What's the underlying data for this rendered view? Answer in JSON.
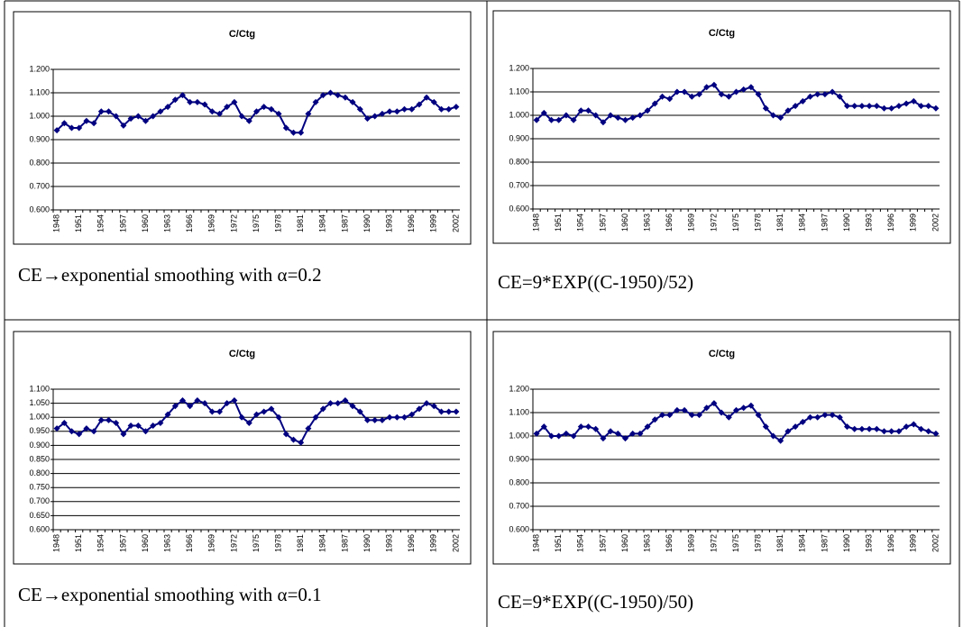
{
  "chart_data": [
    {
      "type": "line",
      "title": "C/Ctg",
      "caption": "CE→exponential smoothing with α=0.2",
      "categories": [
        "1948",
        null,
        null,
        "1951",
        null,
        null,
        "1954",
        null,
        null,
        "1957",
        null,
        null,
        "1960",
        null,
        null,
        "1963",
        null,
        null,
        "1966",
        null,
        null,
        "1969",
        null,
        null,
        "1972",
        null,
        null,
        "1975",
        null,
        null,
        "1978",
        null,
        null,
        "1981",
        null,
        null,
        "1984",
        null,
        null,
        "1987",
        null,
        null,
        "1990",
        null,
        null,
        "1993",
        null,
        null,
        "1996",
        null,
        null,
        "1999",
        null,
        null,
        "2002"
      ],
      "series": [
        {
          "color": "#000080",
          "values": [
            0.94,
            0.97,
            0.95,
            0.95,
            0.98,
            0.97,
            1.02,
            1.02,
            1.0,
            0.96,
            0.99,
            1.0,
            0.98,
            1.0,
            1.02,
            1.04,
            1.07,
            1.09,
            1.06,
            1.06,
            1.05,
            1.02,
            1.01,
            1.04,
            1.06,
            1.0,
            0.98,
            1.02,
            1.04,
            1.03,
            1.01,
            0.95,
            0.93,
            0.93,
            1.01,
            1.06,
            1.09,
            1.1,
            1.09,
            1.08,
            1.06,
            1.03,
            0.99,
            1.0,
            1.01,
            1.02,
            1.02,
            1.03,
            1.03,
            1.05,
            1.08,
            1.06,
            1.03,
            1.03,
            1.04
          ]
        }
      ],
      "ylim": [
        0.6,
        1.2
      ],
      "yticks": [
        {
          "value": 0.6,
          "label": "0.600"
        },
        {
          "value": 0.7,
          "label": "0.700"
        },
        {
          "value": 0.8,
          "label": "0.800"
        },
        {
          "value": 0.9,
          "label": "0.900"
        },
        {
          "value": 1.0,
          "label": "1.000"
        },
        {
          "value": 1.1,
          "label": "1.100"
        },
        {
          "value": 1.2,
          "label": "1.200"
        }
      ],
      "grid": true
    },
    {
      "type": "line",
      "title": "C/Ctg",
      "caption": "CE=9*EXP((C-1950)/52)",
      "categories": [
        "1948",
        null,
        null,
        "1951",
        null,
        null,
        "1954",
        null,
        null,
        "1957",
        null,
        null,
        "1960",
        null,
        null,
        "1963",
        null,
        null,
        "1966",
        null,
        null,
        "1969",
        null,
        null,
        "1972",
        null,
        null,
        "1975",
        null,
        null,
        "1978",
        null,
        null,
        "1981",
        null,
        null,
        "1984",
        null,
        null,
        "1987",
        null,
        null,
        "1990",
        null,
        null,
        "1993",
        null,
        null,
        "1996",
        null,
        null,
        "1999",
        null,
        null,
        "2002"
      ],
      "series": [
        {
          "color": "#000080",
          "values": [
            0.98,
            1.01,
            0.98,
            0.98,
            1.0,
            0.98,
            1.02,
            1.02,
            1.0,
            0.97,
            1.0,
            0.99,
            0.98,
            0.99,
            1.0,
            1.02,
            1.05,
            1.08,
            1.07,
            1.1,
            1.1,
            1.08,
            1.09,
            1.12,
            1.13,
            1.09,
            1.08,
            1.1,
            1.11,
            1.12,
            1.09,
            1.03,
            1.0,
            0.99,
            1.02,
            1.04,
            1.06,
            1.08,
            1.09,
            1.09,
            1.1,
            1.08,
            1.04,
            1.04,
            1.04,
            1.04,
            1.04,
            1.03,
            1.03,
            1.04,
            1.05,
            1.06,
            1.04,
            1.04,
            1.03
          ]
        }
      ],
      "ylim": [
        0.6,
        1.2
      ],
      "yticks": [
        {
          "value": 0.6,
          "label": "0.600"
        },
        {
          "value": 0.7,
          "label": "0.700"
        },
        {
          "value": 0.8,
          "label": "0.800"
        },
        {
          "value": 0.9,
          "label": "0.900"
        },
        {
          "value": 1.0,
          "label": "1.000"
        },
        {
          "value": 1.1,
          "label": "1.100"
        },
        {
          "value": 1.2,
          "label": "1.200"
        }
      ],
      "grid": true
    },
    {
      "type": "line",
      "title": "C/Ctg",
      "caption": "CE→exponential smoothing with α=0.1",
      "categories": [
        "1948",
        null,
        null,
        "1951",
        null,
        null,
        "1954",
        null,
        null,
        "1957",
        null,
        null,
        "1960",
        null,
        null,
        "1963",
        null,
        null,
        "1966",
        null,
        null,
        "1969",
        null,
        null,
        "1972",
        null,
        null,
        "1975",
        null,
        null,
        "1978",
        null,
        null,
        "1981",
        null,
        null,
        "1984",
        null,
        null,
        "1987",
        null,
        null,
        "1990",
        null,
        null,
        "1993",
        null,
        null,
        "1996",
        null,
        null,
        "1999",
        null,
        null,
        "2002"
      ],
      "series": [
        {
          "color": "#000080",
          "values": [
            0.96,
            0.98,
            0.95,
            0.94,
            0.96,
            0.95,
            0.99,
            0.99,
            0.98,
            0.94,
            0.97,
            0.97,
            0.95,
            0.97,
            0.98,
            1.01,
            1.04,
            1.06,
            1.04,
            1.06,
            1.05,
            1.02,
            1.02,
            1.05,
            1.06,
            1.0,
            0.98,
            1.01,
            1.02,
            1.03,
            1.0,
            0.94,
            0.92,
            0.91,
            0.96,
            1.0,
            1.03,
            1.05,
            1.05,
            1.06,
            1.04,
            1.02,
            0.99,
            0.99,
            0.99,
            1.0,
            1.0,
            1.0,
            1.01,
            1.03,
            1.05,
            1.04,
            1.02,
            1.02,
            1.02
          ]
        }
      ],
      "ylim": [
        0.6,
        1.1
      ],
      "yticks": [
        {
          "value": 0.6,
          "label": "0.600"
        },
        {
          "value": 0.65,
          "label": "0.650"
        },
        {
          "value": 0.7,
          "label": "0.700"
        },
        {
          "value": 0.75,
          "label": "0.750"
        },
        {
          "value": 0.8,
          "label": "0.800"
        },
        {
          "value": 0.85,
          "label": "0.850"
        },
        {
          "value": 0.9,
          "label": "0.900"
        },
        {
          "value": 0.95,
          "label": "0.950"
        },
        {
          "value": 1.0,
          "label": "1.000"
        },
        {
          "value": 1.05,
          "label": "1.050"
        },
        {
          "value": 1.1,
          "label": "1.100"
        }
      ],
      "grid": true
    },
    {
      "type": "line",
      "title": "C/Ctg",
      "caption": "CE=9*EXP((C-1950)/50)",
      "categories": [
        "1948",
        null,
        null,
        "1951",
        null,
        null,
        "1954",
        null,
        null,
        "1957",
        null,
        null,
        "1960",
        null,
        null,
        "1963",
        null,
        null,
        "1966",
        null,
        null,
        "1969",
        null,
        null,
        "1972",
        null,
        null,
        "1975",
        null,
        null,
        "1978",
        null,
        null,
        "1981",
        null,
        null,
        "1984",
        null,
        null,
        "1987",
        null,
        null,
        "1990",
        null,
        null,
        "1993",
        null,
        null,
        "1996",
        null,
        null,
        "1999",
        null,
        null,
        "2002"
      ],
      "series": [
        {
          "color": "#000080",
          "values": [
            1.01,
            1.04,
            1.0,
            1.0,
            1.01,
            1.0,
            1.04,
            1.04,
            1.03,
            0.99,
            1.02,
            1.01,
            0.99,
            1.01,
            1.01,
            1.04,
            1.07,
            1.09,
            1.09,
            1.11,
            1.11,
            1.09,
            1.09,
            1.12,
            1.14,
            1.1,
            1.08,
            1.11,
            1.12,
            1.13,
            1.09,
            1.04,
            1.0,
            0.98,
            1.02,
            1.04,
            1.06,
            1.08,
            1.08,
            1.09,
            1.09,
            1.08,
            1.04,
            1.03,
            1.03,
            1.03,
            1.03,
            1.02,
            1.02,
            1.02,
            1.04,
            1.05,
            1.03,
            1.02,
            1.01
          ]
        }
      ],
      "ylim": [
        0.6,
        1.2
      ],
      "yticks": [
        {
          "value": 0.6,
          "label": "0.600"
        },
        {
          "value": 0.7,
          "label": "0.700"
        },
        {
          "value": 0.8,
          "label": "0.800"
        },
        {
          "value": 0.9,
          "label": "0.900"
        },
        {
          "value": 1.0,
          "label": "1.000"
        },
        {
          "value": 1.1,
          "label": "1.100"
        },
        {
          "value": 1.2,
          "label": "1.200"
        }
      ],
      "grid": true
    }
  ]
}
